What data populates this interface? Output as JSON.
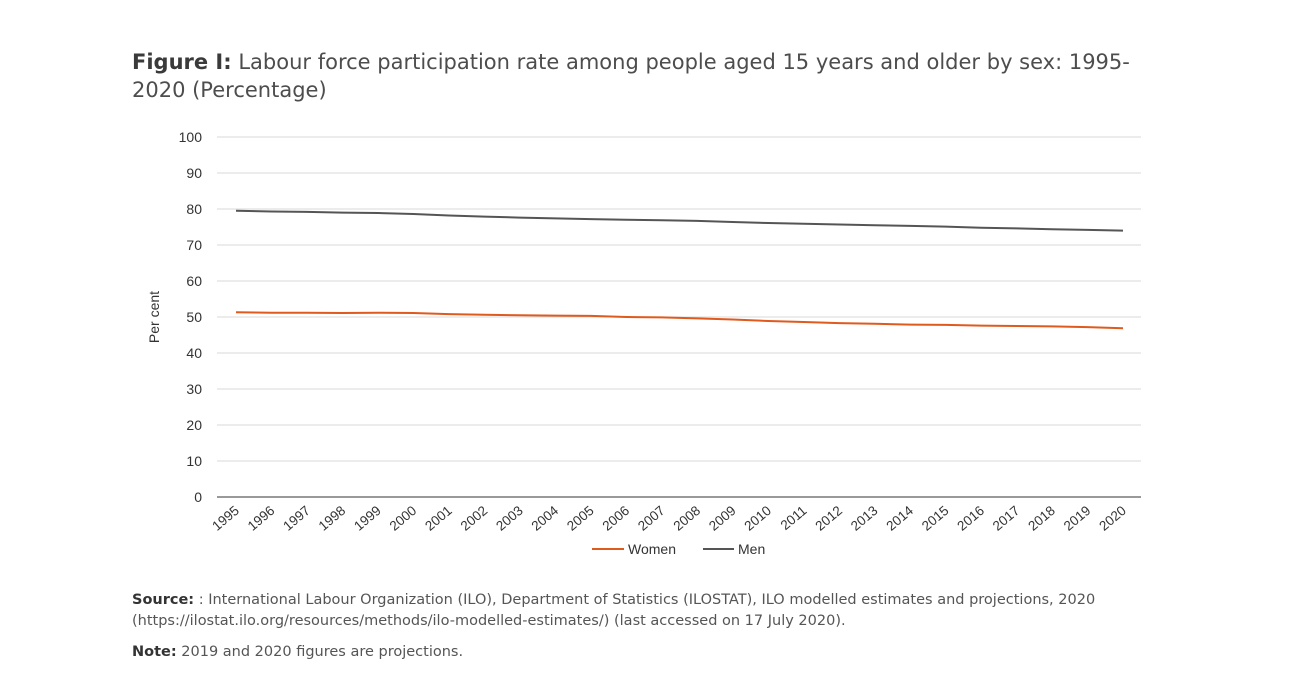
{
  "title_prefix": "Figure I:",
  "title_text": "Labour force participation rate among people aged 15 years and older by sex: 1995-2020 (Percentage)",
  "source_label": "Source:",
  "source_text": ": International Labour Organization (ILO), Department of Statistics (ILOSTAT), ILO modelled estimates and projections, 2020 (https://ilostat.ilo.org/resources/methods/ilo-modelled-estimates/) (last accessed on 17 July 2020).",
  "note_label": "Note:",
  "note_text": "2019 and 2020 figures are projections.",
  "colors": {
    "women": "#e05a1e",
    "men": "#555555",
    "grid": "#d9d9d9",
    "axis": "#333333"
  },
  "chart_data": {
    "type": "line",
    "title": "",
    "xlabel": "",
    "ylabel": "Per cent",
    "ylim": [
      0,
      100
    ],
    "yticks": [
      "0",
      "10",
      "20",
      "30",
      "40",
      "50",
      "60",
      "70",
      "80",
      "90",
      "100"
    ],
    "grid": true,
    "legend_position": "bottom",
    "categories": [
      "1995",
      "1996",
      "1997",
      "1998",
      "1999",
      "2000",
      "2001",
      "2002",
      "2003",
      "2004",
      "2005",
      "2006",
      "2007",
      "2008",
      "2009",
      "2010",
      "2011",
      "2012",
      "2013",
      "2014",
      "2015",
      "2016",
      "2017",
      "2018",
      "2019",
      "2020"
    ],
    "series": [
      {
        "name": "Women",
        "values": [
          51.3,
          51.2,
          51.2,
          51.1,
          51.2,
          51.1,
          50.8,
          50.6,
          50.5,
          50.4,
          50.3,
          50.0,
          49.9,
          49.6,
          49.3,
          48.9,
          48.6,
          48.3,
          48.1,
          47.9,
          47.8,
          47.6,
          47.5,
          47.4,
          47.2,
          46.9
        ]
      },
      {
        "name": "Men",
        "values": [
          79.5,
          79.3,
          79.2,
          79.0,
          78.9,
          78.6,
          78.2,
          77.9,
          77.6,
          77.4,
          77.2,
          77.0,
          76.9,
          76.7,
          76.4,
          76.1,
          75.9,
          75.7,
          75.5,
          75.3,
          75.1,
          74.8,
          74.6,
          74.4,
          74.2,
          74.0
        ]
      }
    ]
  }
}
